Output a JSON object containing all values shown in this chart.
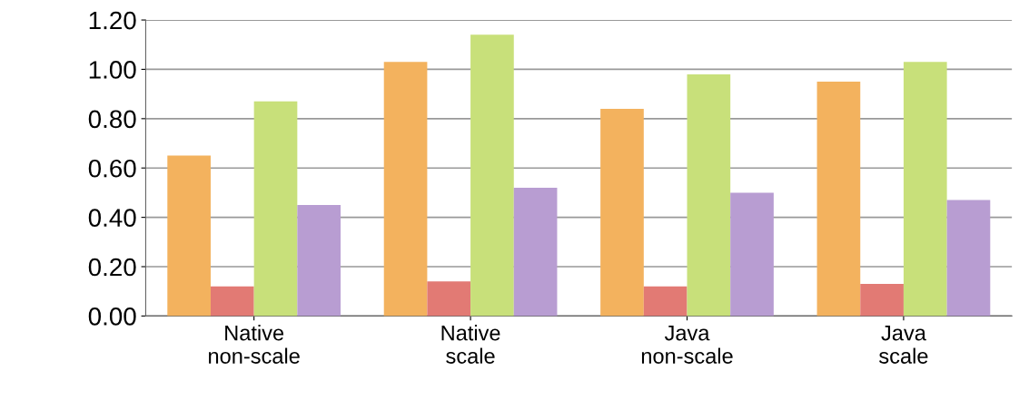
{
  "chart_data": {
    "type": "bar",
    "categories": [
      "Native\nnon-scale",
      "Native\nscale",
      "Java\nnon-scale",
      "Java\nscale"
    ],
    "series": [
      {
        "color": "#f3b25e",
        "values": [
          0.65,
          1.03,
          0.84,
          0.95
        ]
      },
      {
        "color": "#e27a74",
        "values": [
          0.12,
          0.14,
          0.12,
          0.13
        ]
      },
      {
        "color": "#c8e07a",
        "values": [
          0.87,
          1.14,
          0.98,
          1.03
        ]
      },
      {
        "color": "#b89dd2",
        "values": [
          0.45,
          0.52,
          0.5,
          0.47
        ]
      }
    ],
    "ylim": [
      0,
      1.2
    ],
    "yticks": [
      {
        "value": 0,
        "label": "0.00"
      },
      {
        "value": 0.2,
        "label": "0.20"
      },
      {
        "value": 0.4,
        "label": "0.40"
      },
      {
        "value": 0.6,
        "label": "0.60"
      },
      {
        "value": 0.8,
        "label": "0.80"
      },
      {
        "value": 1.0,
        "label": "1.00"
      },
      {
        "value": 1.2,
        "label": "1.20"
      }
    ],
    "grid": "y"
  }
}
